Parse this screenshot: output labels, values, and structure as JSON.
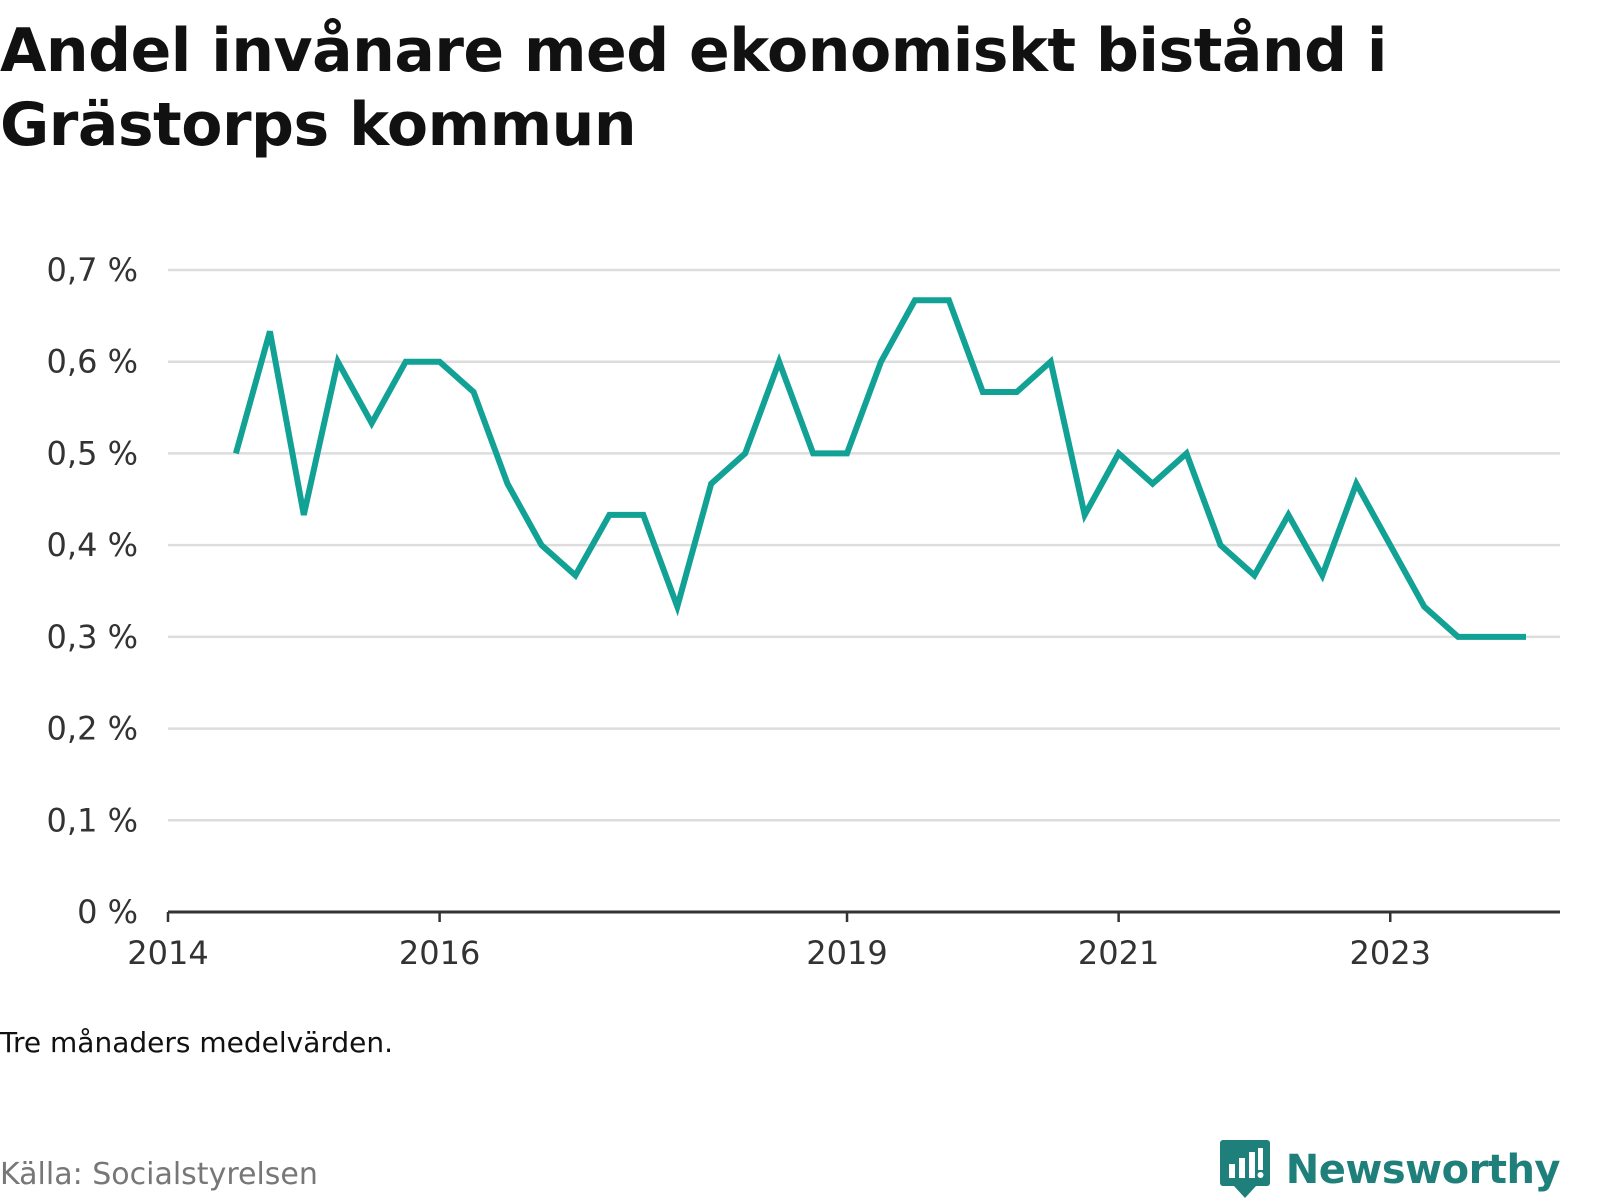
{
  "title": "Andel invånare med ekonomiskt bistånd i Grästorps kommun",
  "note": "Tre månaders medelvärden.",
  "source": "Källa: Socialstyrelsen",
  "brand": {
    "name": "Newsworthy",
    "icon": "newsworthy-logo-icon"
  },
  "colors": {
    "line": "#12a195",
    "grid": "#dddddd",
    "axis": "#333333",
    "brand": "#1f7f7a"
  },
  "chart_data": {
    "type": "line",
    "title": "Andel invånare med ekonomiskt bistånd i Grästorps kommun",
    "xlabel": "",
    "ylabel": "",
    "ylim": [
      0,
      0.7
    ],
    "yticks": [
      0,
      0.1,
      0.2,
      0.3,
      0.4,
      0.5,
      0.6,
      0.7
    ],
    "ytick_labels": [
      "0 %",
      "0,1 %",
      "0,2 %",
      "0,3 %",
      "0,4 %",
      "0,5 %",
      "0,6 %",
      "0,7 %"
    ],
    "xlim": [
      "2014-01",
      "2024-04"
    ],
    "xticks": [
      "2014-01",
      "2016-01",
      "2019-01",
      "2021-01",
      "2023-01"
    ],
    "xtick_labels": [
      "2014",
      "2016",
      "2019",
      "2021",
      "2023"
    ],
    "grid": "horizontal",
    "series": [
      {
        "x": [
          "2014-07",
          "2014-10",
          "2015-01",
          "2015-04",
          "2015-07",
          "2015-10",
          "2016-01",
          "2016-04",
          "2016-07",
          "2016-10",
          "2017-01",
          "2017-04",
          "2017-07",
          "2017-10",
          "2018-01",
          "2018-04",
          "2018-07",
          "2018-10",
          "2019-01",
          "2019-04",
          "2019-07",
          "2019-10",
          "2020-01",
          "2020-04",
          "2020-07",
          "2020-10",
          "2021-01",
          "2021-04",
          "2021-07",
          "2021-10",
          "2022-01",
          "2022-04",
          "2022-07",
          "2022-10",
          "2023-01",
          "2023-04",
          "2023-07",
          "2023-10",
          "2024-01"
        ],
        "values": [
          0.5,
          0.633,
          0.433,
          0.6,
          0.533,
          0.6,
          0.6,
          0.567,
          0.467,
          0.4,
          0.367,
          0.433,
          0.433,
          0.333,
          0.467,
          0.5,
          0.6,
          0.5,
          0.5,
          0.6,
          0.667,
          0.667,
          0.567,
          0.567,
          0.6,
          0.433,
          0.5,
          0.467,
          0.5,
          0.4,
          0.367,
          0.433,
          0.367,
          0.467,
          0.4,
          0.333,
          0.3,
          0.3,
          0.3
        ]
      }
    ]
  }
}
